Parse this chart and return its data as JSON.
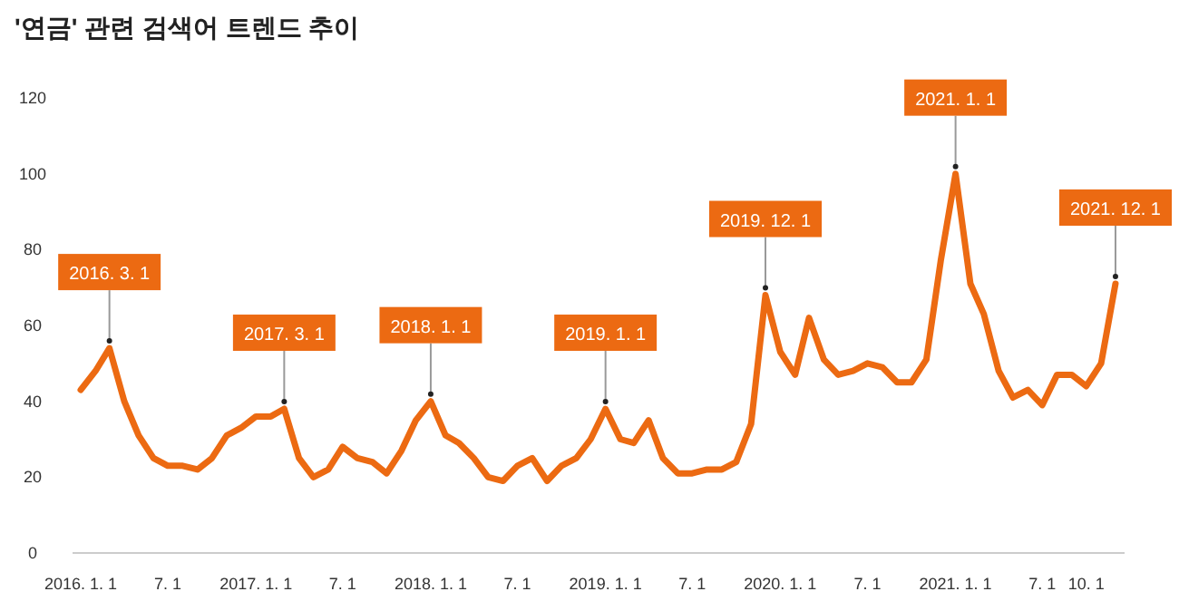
{
  "chart_data": {
    "type": "line",
    "title": "'연금' 관련 검색어 트렌드 추이",
    "x": [
      "2016-01",
      "2016-02",
      "2016-03",
      "2016-04",
      "2016-05",
      "2016-06",
      "2016-07",
      "2016-08",
      "2016-09",
      "2016-10",
      "2016-11",
      "2016-12",
      "2017-01",
      "2017-02",
      "2017-03",
      "2017-04",
      "2017-05",
      "2017-06",
      "2017-07",
      "2017-08",
      "2017-09",
      "2017-10",
      "2017-11",
      "2017-12",
      "2018-01",
      "2018-02",
      "2018-03",
      "2018-04",
      "2018-05",
      "2018-06",
      "2018-07",
      "2018-08",
      "2018-09",
      "2018-10",
      "2018-11",
      "2018-12",
      "2019-01",
      "2019-02",
      "2019-03",
      "2019-04",
      "2019-05",
      "2019-06",
      "2019-07",
      "2019-08",
      "2019-09",
      "2019-10",
      "2019-11",
      "2019-12",
      "2020-01",
      "2020-02",
      "2020-03",
      "2020-04",
      "2020-05",
      "2020-06",
      "2020-07",
      "2020-08",
      "2020-09",
      "2020-10",
      "2020-11",
      "2020-12",
      "2021-01",
      "2021-02",
      "2021-03",
      "2021-04",
      "2021-05",
      "2021-06",
      "2021-07",
      "2021-08",
      "2021-09",
      "2021-10",
      "2021-11",
      "2021-12"
    ],
    "series": [
      {
        "color": "#ec6a12",
        "values": [
          43,
          48,
          54,
          40,
          31,
          25,
          23,
          23,
          22,
          25,
          31,
          33,
          36,
          36,
          38,
          25,
          20,
          22,
          28,
          25,
          24,
          21,
          27,
          35,
          40,
          31,
          29,
          25,
          20,
          19,
          23,
          25,
          19,
          23,
          25,
          30,
          38,
          30,
          29,
          35,
          25,
          21,
          21,
          22,
          22,
          24,
          34,
          68,
          53,
          47,
          62,
          51,
          47,
          48,
          50,
          49,
          45,
          45,
          51,
          77,
          100,
          71,
          63,
          48,
          41,
          43,
          39,
          47,
          47,
          44,
          50,
          71
        ]
      }
    ],
    "xlim": [
      "2015-12-15",
      "2021-12-20"
    ],
    "xticks": [
      {
        "value": "2016-01",
        "label": "2016. 1. 1"
      },
      {
        "value": "2016-07",
        "label": "7. 1"
      },
      {
        "value": "2017-01",
        "label": "2017. 1. 1"
      },
      {
        "value": "2017-07",
        "label": "7. 1"
      },
      {
        "value": "2018-01",
        "label": "2018. 1. 1"
      },
      {
        "value": "2018-07",
        "label": "7. 1"
      },
      {
        "value": "2019-01",
        "label": "2019. 1. 1"
      },
      {
        "value": "2019-07",
        "label": "7. 1"
      },
      {
        "value": "2020-01",
        "label": "2020. 1. 1"
      },
      {
        "value": "2020-07",
        "label": "7. 1"
      },
      {
        "value": "2021-01",
        "label": "2021. 1. 1"
      },
      {
        "value": "2021-07",
        "label": "7. 1"
      },
      {
        "value": "2021-10",
        "label": "10. 1"
      }
    ],
    "ylim": [
      0,
      120
    ],
    "yticks": [
      0,
      20,
      40,
      60,
      80,
      100,
      120
    ],
    "grid": false,
    "marker": "none",
    "line_style": "solid",
    "annotations": [
      {
        "text": "2016. 3. 1",
        "x": "2016-03",
        "y": 54
      },
      {
        "text": "2017. 3. 1",
        "x": "2017-03",
        "y": 38
      },
      {
        "text": "2018. 1. 1",
        "x": "2018-01",
        "y": 40
      },
      {
        "text": "2019. 1. 1",
        "x": "2019-01",
        "y": 38
      },
      {
        "text": "2019. 12. 1",
        "x": "2019-12",
        "y": 68
      },
      {
        "text": "2021. 1. 1",
        "x": "2021-01",
        "y": 100
      },
      {
        "text": "2021. 12. 1",
        "x": "2021-12",
        "y": 71
      }
    ]
  }
}
